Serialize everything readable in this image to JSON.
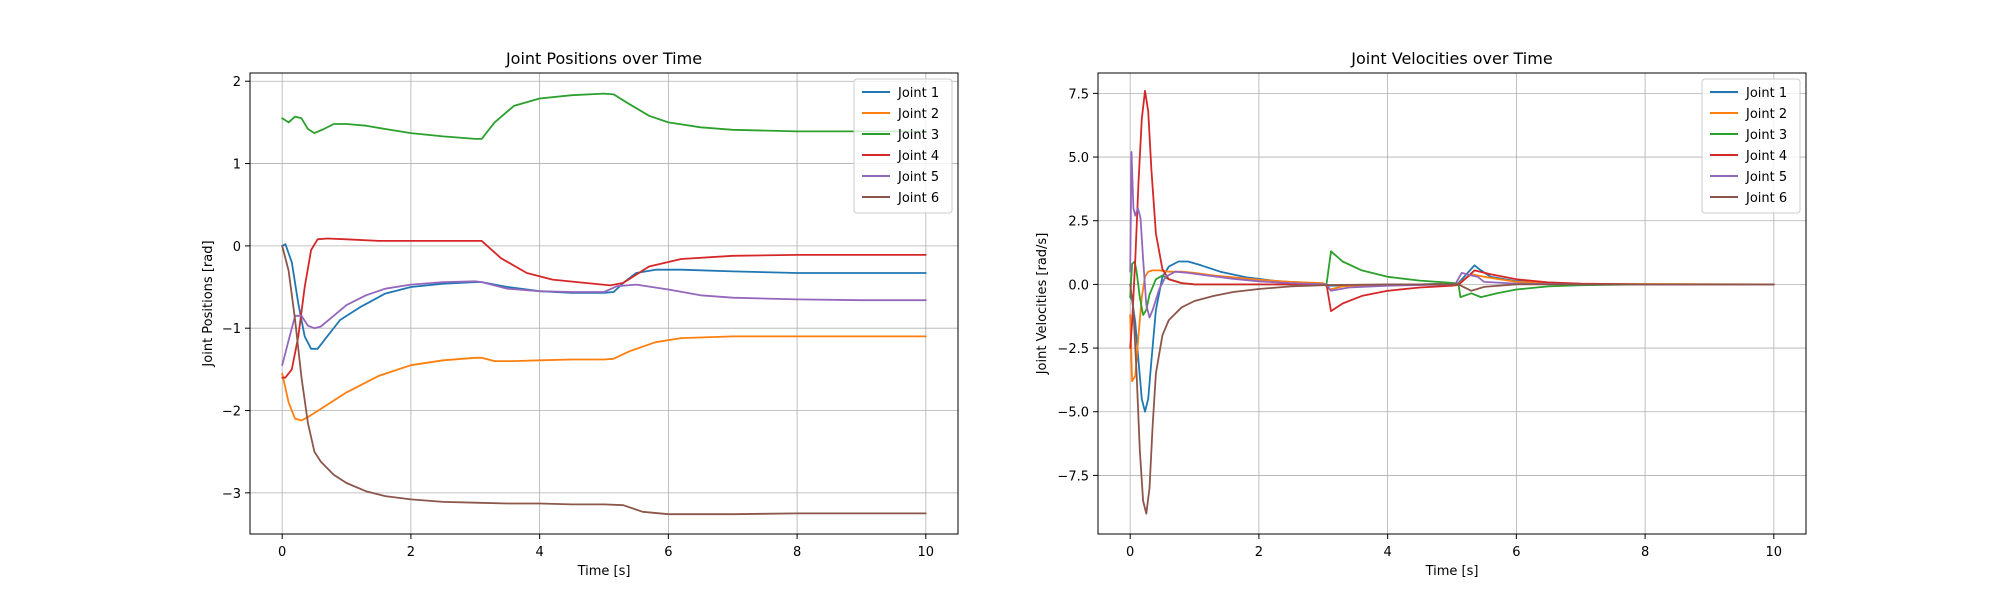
{
  "chart_data": [
    {
      "type": "line",
      "title": "Joint Positions over Time",
      "xlabel": "Time [s]",
      "ylabel": "Joint Positions [rad]",
      "xlim": [
        -0.5,
        10.5
      ],
      "ylim": [
        -3.5,
        2.1
      ],
      "xticks": [
        0,
        2,
        4,
        6,
        8,
        10
      ],
      "yticks": [
        -3,
        -2,
        -1,
        0,
        1,
        2
      ],
      "grid": true,
      "legend_position": "top-right",
      "series": [
        {
          "name": "Joint 1",
          "color": "#1f77b4",
          "x": [
            0,
            0.05,
            0.15,
            0.25,
            0.35,
            0.45,
            0.55,
            0.7,
            0.9,
            1.2,
            1.6,
            2.0,
            2.5,
            3.0,
            3.1,
            3.5,
            4.0,
            4.5,
            5.0,
            5.15,
            5.3,
            5.5,
            5.8,
            6.2,
            7,
            8,
            9,
            10
          ],
          "y": [
            0,
            0.02,
            -0.2,
            -0.7,
            -1.1,
            -1.25,
            -1.25,
            -1.1,
            -0.9,
            -0.75,
            -0.58,
            -0.5,
            -0.46,
            -0.44,
            -0.44,
            -0.5,
            -0.55,
            -0.57,
            -0.57,
            -0.56,
            -0.45,
            -0.33,
            -0.29,
            -0.29,
            -0.31,
            -0.33,
            -0.33,
            -0.33
          ]
        },
        {
          "name": "Joint 2",
          "color": "#ff7f0e",
          "x": [
            0,
            0.1,
            0.2,
            0.3,
            0.4,
            0.6,
            1.0,
            1.5,
            2.0,
            2.5,
            3.0,
            3.1,
            3.3,
            3.6,
            4.0,
            4.5,
            5.0,
            5.15,
            5.4,
            5.8,
            6.2,
            7,
            8,
            9,
            10
          ],
          "y": [
            -1.55,
            -1.9,
            -2.1,
            -2.12,
            -2.08,
            -1.98,
            -1.78,
            -1.58,
            -1.45,
            -1.39,
            -1.36,
            -1.36,
            -1.4,
            -1.4,
            -1.39,
            -1.38,
            -1.38,
            -1.37,
            -1.28,
            -1.17,
            -1.12,
            -1.1,
            -1.1,
            -1.1,
            -1.1
          ]
        },
        {
          "name": "Joint 3",
          "color": "#2ca02c",
          "x": [
            0,
            0.1,
            0.2,
            0.3,
            0.4,
            0.5,
            0.65,
            0.8,
            1.0,
            1.3,
            1.6,
            2.0,
            2.5,
            3.0,
            3.1,
            3.3,
            3.6,
            4.0,
            4.5,
            5.0,
            5.15,
            5.4,
            5.7,
            6.0,
            6.5,
            7,
            8,
            9,
            10
          ],
          "y": [
            1.55,
            1.5,
            1.57,
            1.55,
            1.42,
            1.37,
            1.42,
            1.48,
            1.48,
            1.46,
            1.42,
            1.37,
            1.33,
            1.3,
            1.3,
            1.5,
            1.7,
            1.79,
            1.83,
            1.85,
            1.84,
            1.72,
            1.58,
            1.5,
            1.44,
            1.41,
            1.39,
            1.39,
            1.39
          ]
        },
        {
          "name": "Joint 4",
          "color": "#d62728",
          "x": [
            0,
            0.05,
            0.15,
            0.25,
            0.35,
            0.45,
            0.55,
            0.7,
            1.0,
            1.5,
            2.0,
            2.5,
            3.0,
            3.1,
            3.4,
            3.8,
            4.2,
            4.7,
            5.1,
            5.3,
            5.7,
            6.2,
            7,
            8,
            9,
            10
          ],
          "y": [
            -1.6,
            -1.6,
            -1.5,
            -1.1,
            -0.5,
            -0.05,
            0.08,
            0.09,
            0.08,
            0.06,
            0.06,
            0.06,
            0.06,
            0.06,
            -0.15,
            -0.33,
            -0.41,
            -0.45,
            -0.48,
            -0.45,
            -0.25,
            -0.16,
            -0.12,
            -0.11,
            -0.11,
            -0.11
          ]
        },
        {
          "name": "Joint 5",
          "color": "#9467bd",
          "x": [
            0,
            0.1,
            0.2,
            0.3,
            0.4,
            0.5,
            0.6,
            0.8,
            1.0,
            1.3,
            1.6,
            2.0,
            2.5,
            3.0,
            3.1,
            3.5,
            4.0,
            4.5,
            5.0,
            5.2,
            5.5,
            6.0,
            6.5,
            7,
            8,
            9,
            10
          ],
          "y": [
            -1.45,
            -1.15,
            -0.85,
            -0.85,
            -0.97,
            -1.0,
            -0.98,
            -0.85,
            -0.72,
            -0.6,
            -0.52,
            -0.47,
            -0.44,
            -0.43,
            -0.44,
            -0.52,
            -0.55,
            -0.56,
            -0.56,
            -0.49,
            -0.47,
            -0.53,
            -0.6,
            -0.63,
            -0.65,
            -0.66,
            -0.66
          ]
        },
        {
          "name": "Joint 6",
          "color": "#8c564b",
          "x": [
            0,
            0.1,
            0.2,
            0.3,
            0.4,
            0.5,
            0.6,
            0.8,
            1.0,
            1.3,
            1.6,
            2.0,
            2.5,
            3.0,
            3.5,
            4.0,
            4.5,
            5.0,
            5.3,
            5.6,
            6.0,
            6.5,
            7,
            8,
            9,
            10
          ],
          "y": [
            0,
            -0.3,
            -0.9,
            -1.6,
            -2.15,
            -2.5,
            -2.62,
            -2.78,
            -2.88,
            -2.98,
            -3.04,
            -3.08,
            -3.11,
            -3.12,
            -3.13,
            -3.13,
            -3.14,
            -3.14,
            -3.15,
            -3.23,
            -3.26,
            -3.26,
            -3.26,
            -3.25,
            -3.25,
            -3.25
          ]
        }
      ]
    },
    {
      "type": "line",
      "title": "Joint Velocities over Time",
      "xlabel": "Time [s]",
      "ylabel": "Joint Velocities [rad/s]",
      "xlim": [
        -0.5,
        10.5
      ],
      "ylim": [
        -9.8,
        8.3
      ],
      "xticks": [
        0,
        2,
        4,
        6,
        8,
        10
      ],
      "yticks": [
        -7.5,
        -5.0,
        -2.5,
        0.0,
        2.5,
        5.0,
        7.5
      ],
      "ytick_labels": [
        "−7.5",
        "−5.0",
        "−2.5",
        "0.0",
        "2.5",
        "5.0",
        "7.5"
      ],
      "grid": true,
      "legend_position": "top-right",
      "series": [
        {
          "name": "Joint 1",
          "color": "#1f77b4",
          "x": [
            0,
            0.03,
            0.08,
            0.13,
            0.18,
            0.23,
            0.28,
            0.33,
            0.4,
            0.5,
            0.6,
            0.75,
            0.9,
            1.1,
            1.4,
            1.8,
            2.3,
            3.0,
            3.1,
            3.5,
            4.5,
            5.1,
            5.35,
            5.45,
            5.6,
            6.0,
            7,
            8,
            10
          ],
          "y": [
            -0.5,
            -0.6,
            -1.5,
            -3.0,
            -4.5,
            -5.0,
            -4.5,
            -3.0,
            -1.0,
            0.3,
            0.7,
            0.9,
            0.9,
            0.75,
            0.5,
            0.28,
            0.12,
            0.03,
            -0.05,
            -0.03,
            0.0,
            0.05,
            0.75,
            0.55,
            0.3,
            0.12,
            0.02,
            0.0,
            0.0
          ]
        },
        {
          "name": "Joint 2",
          "color": "#ff7f0e",
          "x": [
            0,
            0.03,
            0.08,
            0.13,
            0.18,
            0.23,
            0.28,
            0.35,
            0.45,
            0.6,
            0.8,
            1.0,
            1.3,
            1.6,
            2.0,
            2.5,
            3.0,
            3.1,
            3.3,
            4,
            5.1,
            5.3,
            5.5,
            6,
            7,
            10
          ],
          "y": [
            -1.2,
            -3.8,
            -3.6,
            -2.0,
            -0.5,
            0.3,
            0.5,
            0.55,
            0.55,
            0.5,
            0.5,
            0.45,
            0.35,
            0.28,
            0.18,
            0.1,
            0.05,
            -0.2,
            -0.08,
            -0.02,
            0.02,
            0.4,
            0.3,
            0.1,
            0.02,
            0.0
          ]
        },
        {
          "name": "Joint 3",
          "color": "#2ca02c",
          "x": [
            0,
            0.03,
            0.07,
            0.1,
            0.15,
            0.2,
            0.25,
            0.3,
            0.4,
            0.5,
            0.6,
            0.8,
            1.0,
            1.5,
            2.0,
            2.5,
            3.05,
            3.12,
            3.3,
            3.6,
            4.0,
            4.5,
            5.0,
            5.1,
            5.13,
            5.3,
            5.45,
            5.7,
            6.0,
            6.5,
            7,
            8,
            10
          ],
          "y": [
            -0.5,
            0.8,
            0.9,
            0.5,
            -0.5,
            -1.2,
            -1.0,
            -0.4,
            0.2,
            0.35,
            0.2,
            0.05,
            0.0,
            0.0,
            0.0,
            0.0,
            0.0,
            1.3,
            0.9,
            0.55,
            0.3,
            0.15,
            0.06,
            0.03,
            -0.5,
            -0.35,
            -0.5,
            -0.35,
            -0.2,
            -0.08,
            -0.03,
            0.0,
            0.0
          ]
        },
        {
          "name": "Joint 4",
          "color": "#d62728",
          "x": [
            0,
            0.03,
            0.08,
            0.13,
            0.18,
            0.23,
            0.28,
            0.33,
            0.4,
            0.5,
            0.6,
            0.8,
            1.0,
            1.5,
            2.0,
            2.5,
            3.05,
            3.12,
            3.3,
            3.6,
            4.0,
            4.5,
            5.0,
            5.1,
            5.35,
            5.6,
            6.0,
            6.5,
            7,
            8,
            10
          ],
          "y": [
            -2.5,
            -1.5,
            1.0,
            4.0,
            6.5,
            7.6,
            6.8,
            4.5,
            2.0,
            0.6,
            0.2,
            0.05,
            0.0,
            0.0,
            0.0,
            0.0,
            0.0,
            -1.05,
            -0.75,
            -0.45,
            -0.25,
            -0.12,
            -0.05,
            -0.02,
            0.55,
            0.4,
            0.2,
            0.08,
            0.03,
            0.0,
            0.0
          ]
        },
        {
          "name": "Joint 5",
          "color": "#9467bd",
          "x": [
            0,
            0.02,
            0.05,
            0.08,
            0.12,
            0.16,
            0.2,
            0.25,
            0.3,
            0.35,
            0.45,
            0.55,
            0.7,
            0.9,
            1.2,
            1.6,
            2.0,
            2.5,
            3.05,
            3.12,
            3.4,
            4.0,
            5.05,
            5.15,
            5.3,
            5.4,
            5.5,
            6.0,
            7,
            10
          ],
          "y": [
            0.5,
            5.2,
            3.0,
            2.7,
            3.0,
            2.6,
            1.0,
            -0.8,
            -1.3,
            -1.0,
            -0.2,
            0.3,
            0.5,
            0.45,
            0.35,
            0.22,
            0.12,
            0.05,
            0.0,
            -0.25,
            -0.12,
            -0.05,
            0.0,
            0.45,
            0.35,
            0.3,
            0.1,
            0.03,
            0.0,
            0.0
          ]
        },
        {
          "name": "Joint 6",
          "color": "#8c564b",
          "x": [
            0,
            0.05,
            0.1,
            0.15,
            0.2,
            0.25,
            0.3,
            0.35,
            0.4,
            0.5,
            0.6,
            0.8,
            1.0,
            1.3,
            1.6,
            2.0,
            2.5,
            3.0,
            4.0,
            5.1,
            5.3,
            5.5,
            6.0,
            7,
            10
          ],
          "y": [
            0.0,
            -1.0,
            -3.5,
            -6.5,
            -8.5,
            -9.0,
            -8.0,
            -5.5,
            -3.5,
            -2.0,
            -1.4,
            -0.9,
            -0.65,
            -0.45,
            -0.3,
            -0.18,
            -0.08,
            -0.03,
            0.0,
            0.0,
            -0.25,
            -0.1,
            0.0,
            0.0,
            0.0
          ]
        }
      ]
    }
  ]
}
